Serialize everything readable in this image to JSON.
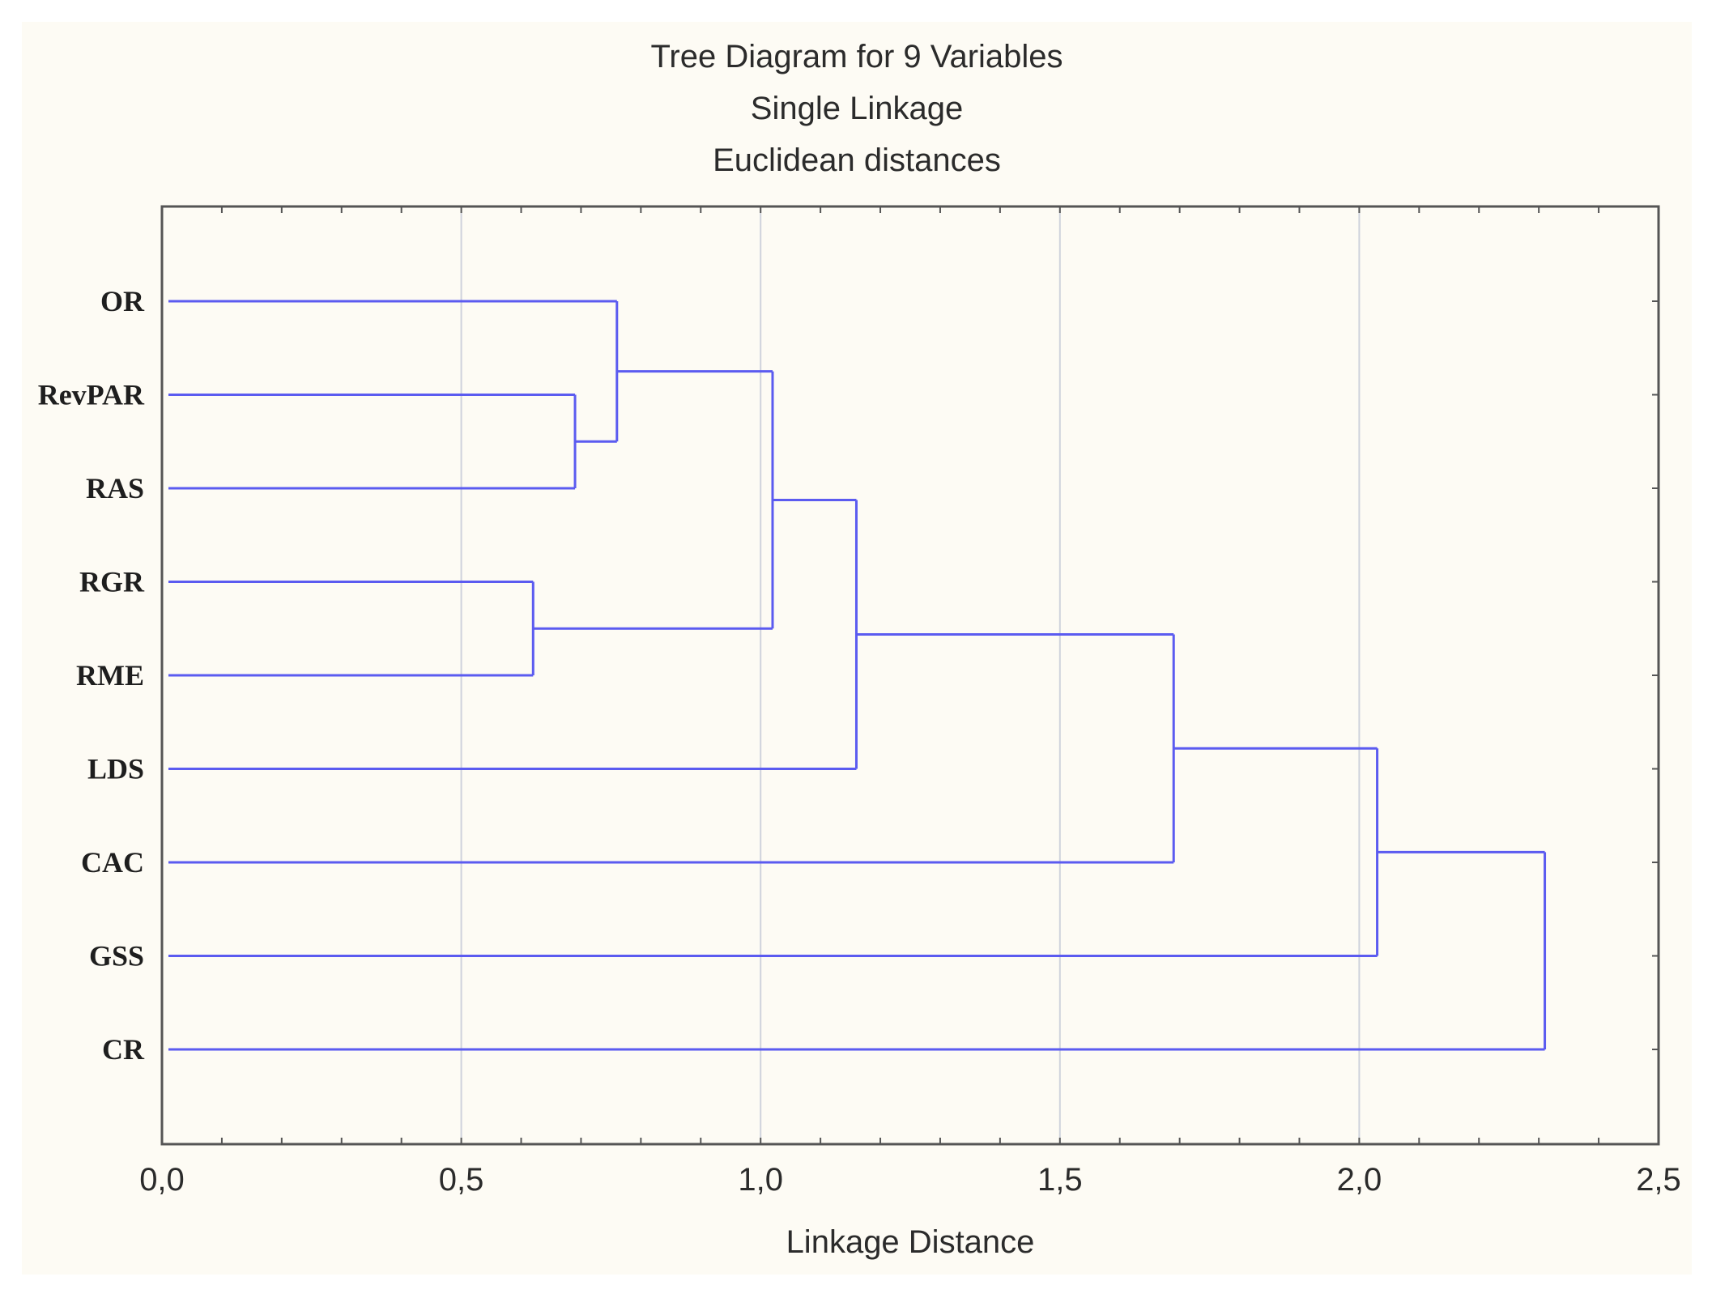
{
  "chart_data": {
    "type": "dendrogram",
    "title": "Tree Diagram for 9   Variables",
    "subtitle_lines": [
      "Single Linkage",
      "Euclidean distances"
    ],
    "xlabel": "Linkage Distance",
    "xlim": [
      0,
      2.5
    ],
    "x_ticks": [
      "0,0",
      "0,5",
      "1,0",
      "1,5",
      "2,0",
      "2,5"
    ],
    "x_tick_values": [
      0,
      0.5,
      1.0,
      1.5,
      2.0,
      2.5
    ],
    "grid": true,
    "line_color": "#5b5bf0",
    "leaves": [
      "OR",
      "RevPAR",
      "RAS",
      "RGR",
      "RME",
      "LDS",
      "CAC",
      "GSS",
      "CR"
    ],
    "merges": [
      {
        "a": "RGR",
        "b": "RME",
        "height": 0.62
      },
      {
        "a": "RevPAR",
        "b": "RAS",
        "height": 0.69
      },
      {
        "a": "OR",
        "b": "RevPAR+RAS",
        "height": 0.76
      },
      {
        "a": "OR+RevPAR+RAS",
        "b": "RGR+RME",
        "height": 1.02
      },
      {
        "a": "OR+RevPAR+RAS+RGR+RME",
        "b": "LDS",
        "height": 1.16
      },
      {
        "a": "previous",
        "b": "CAC",
        "height": 1.69
      },
      {
        "a": "previous",
        "b": "GSS",
        "height": 2.03
      },
      {
        "a": "previous",
        "b": "CR",
        "height": 2.31
      }
    ]
  }
}
